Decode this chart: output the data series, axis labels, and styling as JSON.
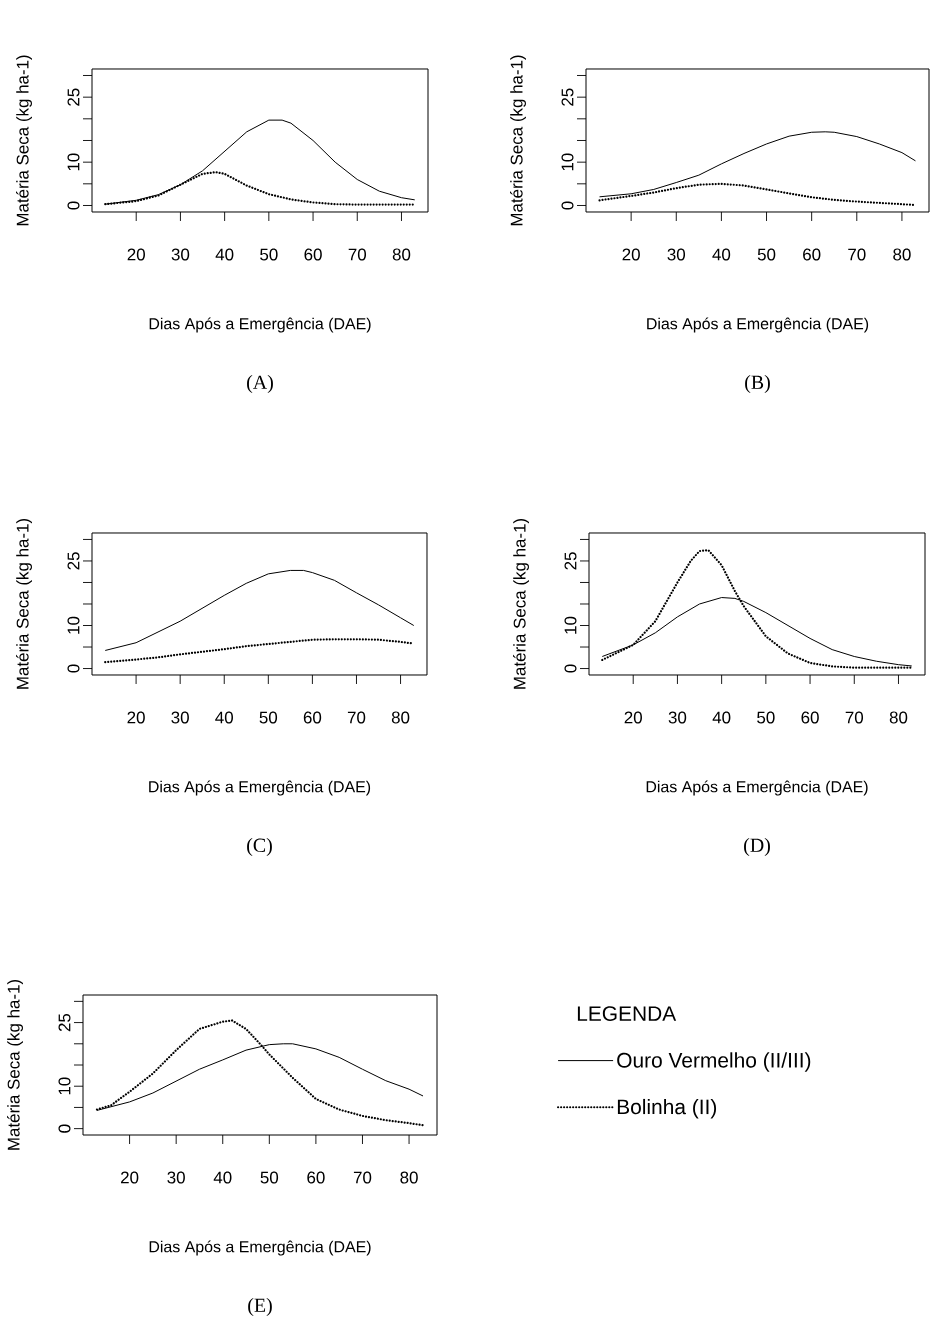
{
  "chart_data": [
    {
      "type": "line",
      "title": "(A)",
      "xlabel": "Dias Após a Emergência (DAE)",
      "ylabel": "Matéria Seca (kg ha-1)",
      "xlim": [
        10,
        86
      ],
      "ylim": [
        -1.5,
        31.5
      ],
      "xticks": [
        20,
        30,
        40,
        50,
        60,
        70,
        80
      ],
      "yticks": [
        0,
        {
          "value": 5,
          "label": null
        },
        10,
        {
          "value": 15,
          "label": null
        },
        {
          "value": 20,
          "label": null
        },
        25,
        {
          "value": 30,
          "label": null
        }
      ],
      "grid": false,
      "legend": false,
      "marker": "none",
      "series": [
        {
          "color": "#000000",
          "line_style": "solid",
          "x": [
            13,
            20,
            25,
            30,
            35,
            40,
            45,
            50,
            53,
            55,
            60,
            65,
            70,
            75,
            80,
            83
          ],
          "values": [
            0.3,
            1.2,
            2.5,
            4.8,
            8,
            12.5,
            17,
            19.7,
            19.7,
            19,
            15,
            10,
            6,
            3.3,
            1.8,
            1.3
          ]
        },
        {
          "color": "#000000",
          "line_style": "dotted",
          "x": [
            13,
            20,
            25,
            30,
            35,
            38,
            40,
            45,
            50,
            55,
            60,
            65,
            70,
            75,
            80,
            83
          ],
          "values": [
            0.3,
            1,
            2.3,
            4.8,
            7.3,
            7.7,
            7.3,
            4.6,
            2.6,
            1.4,
            0.7,
            0.3,
            0.2,
            0.2,
            0.2,
            0.2
          ]
        }
      ]
    },
    {
      "type": "line",
      "title": "(B)",
      "xlabel": "Dias Após a Emergência (DAE)",
      "ylabel": "Matéria Seca (kg ha-1)",
      "xlim": [
        10,
        86
      ],
      "ylim": [
        -1.5,
        31.5
      ],
      "xticks": [
        20,
        30,
        40,
        50,
        60,
        70,
        80
      ],
      "yticks": [
        0,
        {
          "value": 5,
          "label": null
        },
        10,
        {
          "value": 15,
          "label": null
        },
        {
          "value": 20,
          "label": null
        },
        25,
        {
          "value": 30,
          "label": null
        }
      ],
      "grid": false,
      "legend": false,
      "marker": "none",
      "series": [
        {
          "color": "#000000",
          "line_style": "solid",
          "x": [
            13,
            20,
            25,
            30,
            35,
            40,
            45,
            50,
            55,
            60,
            63,
            65,
            70,
            75,
            80,
            83
          ],
          "values": [
            2,
            2.7,
            3.7,
            5.3,
            7,
            9.6,
            12,
            14.2,
            16,
            16.9,
            17,
            16.9,
            15.9,
            14.2,
            12.2,
            10.3
          ]
        },
        {
          "color": "#000000",
          "line_style": "dotted",
          "x": [
            13,
            20,
            25,
            30,
            35,
            40,
            45,
            50,
            55,
            60,
            65,
            70,
            75,
            80,
            83
          ],
          "values": [
            1.2,
            2.2,
            3,
            4,
            4.8,
            5,
            4.6,
            3.7,
            2.8,
            1.9,
            1.3,
            0.9,
            0.6,
            0.3,
            0.1
          ]
        }
      ]
    },
    {
      "type": "line",
      "title": "(C)",
      "xlabel": "Dias Após a Emergência (DAE)",
      "ylabel": "Matéria Seca (kg ha-1)",
      "xlim": [
        10,
        86
      ],
      "ylim": [
        -1.5,
        31.5
      ],
      "xticks": [
        20,
        30,
        40,
        50,
        60,
        70,
        80
      ],
      "yticks": [
        0,
        {
          "value": 5,
          "label": null
        },
        10,
        {
          "value": 15,
          "label": null
        },
        {
          "value": 20,
          "label": null
        },
        25,
        {
          "value": 30,
          "label": null
        }
      ],
      "grid": false,
      "legend": false,
      "marker": "none",
      "series": [
        {
          "color": "#000000",
          "line_style": "solid",
          "x": [
            13,
            20,
            25,
            30,
            35,
            40,
            45,
            50,
            55,
            58,
            60,
            65,
            70,
            75,
            80,
            83
          ],
          "values": [
            4.2,
            6,
            8.5,
            11,
            14,
            17,
            19.8,
            22,
            22.8,
            22.8,
            22.3,
            20.5,
            17.6,
            14.8,
            11.8,
            10
          ]
        },
        {
          "color": "#000000",
          "line_style": "dotted",
          "x": [
            13,
            20,
            25,
            30,
            35,
            40,
            45,
            50,
            55,
            60,
            65,
            70,
            75,
            80,
            83
          ],
          "values": [
            1.5,
            2.1,
            2.6,
            3.3,
            3.9,
            4.5,
            5.2,
            5.7,
            6.2,
            6.7,
            6.8,
            6.8,
            6.7,
            6.2,
            5.8
          ]
        }
      ]
    },
    {
      "type": "line",
      "title": "(D)",
      "xlabel": "Dias Após a Emergência (DAE)",
      "ylabel": "Matéria Seca (kg ha-1)",
      "xlim": [
        10,
        86
      ],
      "ylim": [
        -1.5,
        31.5
      ],
      "xticks": [
        20,
        30,
        40,
        50,
        60,
        70,
        80
      ],
      "yticks": [
        0,
        {
          "value": 5,
          "label": null
        },
        10,
        {
          "value": 15,
          "label": null
        },
        {
          "value": 20,
          "label": null
        },
        25,
        {
          "value": 30,
          "label": null
        }
      ],
      "grid": false,
      "legend": false,
      "marker": "none",
      "series": [
        {
          "color": "#000000",
          "line_style": "solid",
          "x": [
            13,
            20,
            25,
            30,
            35,
            40,
            43,
            45,
            50,
            55,
            60,
            65,
            70,
            75,
            80,
            83
          ],
          "values": [
            2.8,
            5.5,
            8.3,
            12,
            15,
            16.5,
            16.3,
            15.6,
            13,
            10,
            7,
            4.4,
            2.8,
            1.7,
            0.9,
            0.6
          ]
        },
        {
          "color": "#000000",
          "line_style": "dotted",
          "x": [
            13,
            20,
            25,
            30,
            33,
            35,
            37,
            40,
            43,
            45,
            50,
            55,
            60,
            65,
            70,
            75,
            80,
            83
          ],
          "values": [
            2,
            5.5,
            11,
            20,
            25,
            27.3,
            27.5,
            24,
            18,
            14.5,
            7.5,
            3.5,
            1.3,
            0.5,
            0.2,
            0.2,
            0.2,
            0.2
          ]
        }
      ]
    },
    {
      "type": "line",
      "title": "(E)",
      "xlabel": "Dias Após a Emergência (DAE)",
      "ylabel": "Matéria Seca (kg ha-1)",
      "xlim": [
        10,
        86
      ],
      "ylim": [
        -1.5,
        31.5
      ],
      "xticks": [
        20,
        30,
        40,
        50,
        60,
        70,
        80
      ],
      "yticks": [
        0,
        {
          "value": 5,
          "label": null
        },
        10,
        {
          "value": 15,
          "label": null
        },
        {
          "value": 20,
          "label": null
        },
        25,
        {
          "value": 30,
          "label": null
        }
      ],
      "grid": false,
      "legend": "right",
      "legend_title": "LEGENDA",
      "marker": "none",
      "series": [
        {
          "name": "Ouro Vermelho (II/III)",
          "color": "#000000",
          "line_style": "solid",
          "x": [
            13,
            20,
            25,
            30,
            35,
            40,
            45,
            50,
            53,
            55,
            60,
            65,
            70,
            75,
            80,
            83
          ],
          "values": [
            4.3,
            6.3,
            8.4,
            11.2,
            14,
            16.2,
            18.5,
            19.8,
            20,
            20,
            18.8,
            16.8,
            14,
            11.3,
            9.3,
            7.7
          ]
        },
        {
          "name": "Bolinha (II)",
          "color": "#000000",
          "line_style": "dotted",
          "x": [
            13,
            16,
            20,
            25,
            30,
            35,
            40,
            42,
            45,
            48,
            50,
            55,
            60,
            65,
            70,
            75,
            80,
            83
          ],
          "values": [
            4.5,
            5.5,
            8.7,
            13,
            18.5,
            23.5,
            25.2,
            25.5,
            23.5,
            20,
            17.5,
            12,
            7,
            4.5,
            3,
            2,
            1.3,
            0.8
          ]
        }
      ]
    }
  ]
}
